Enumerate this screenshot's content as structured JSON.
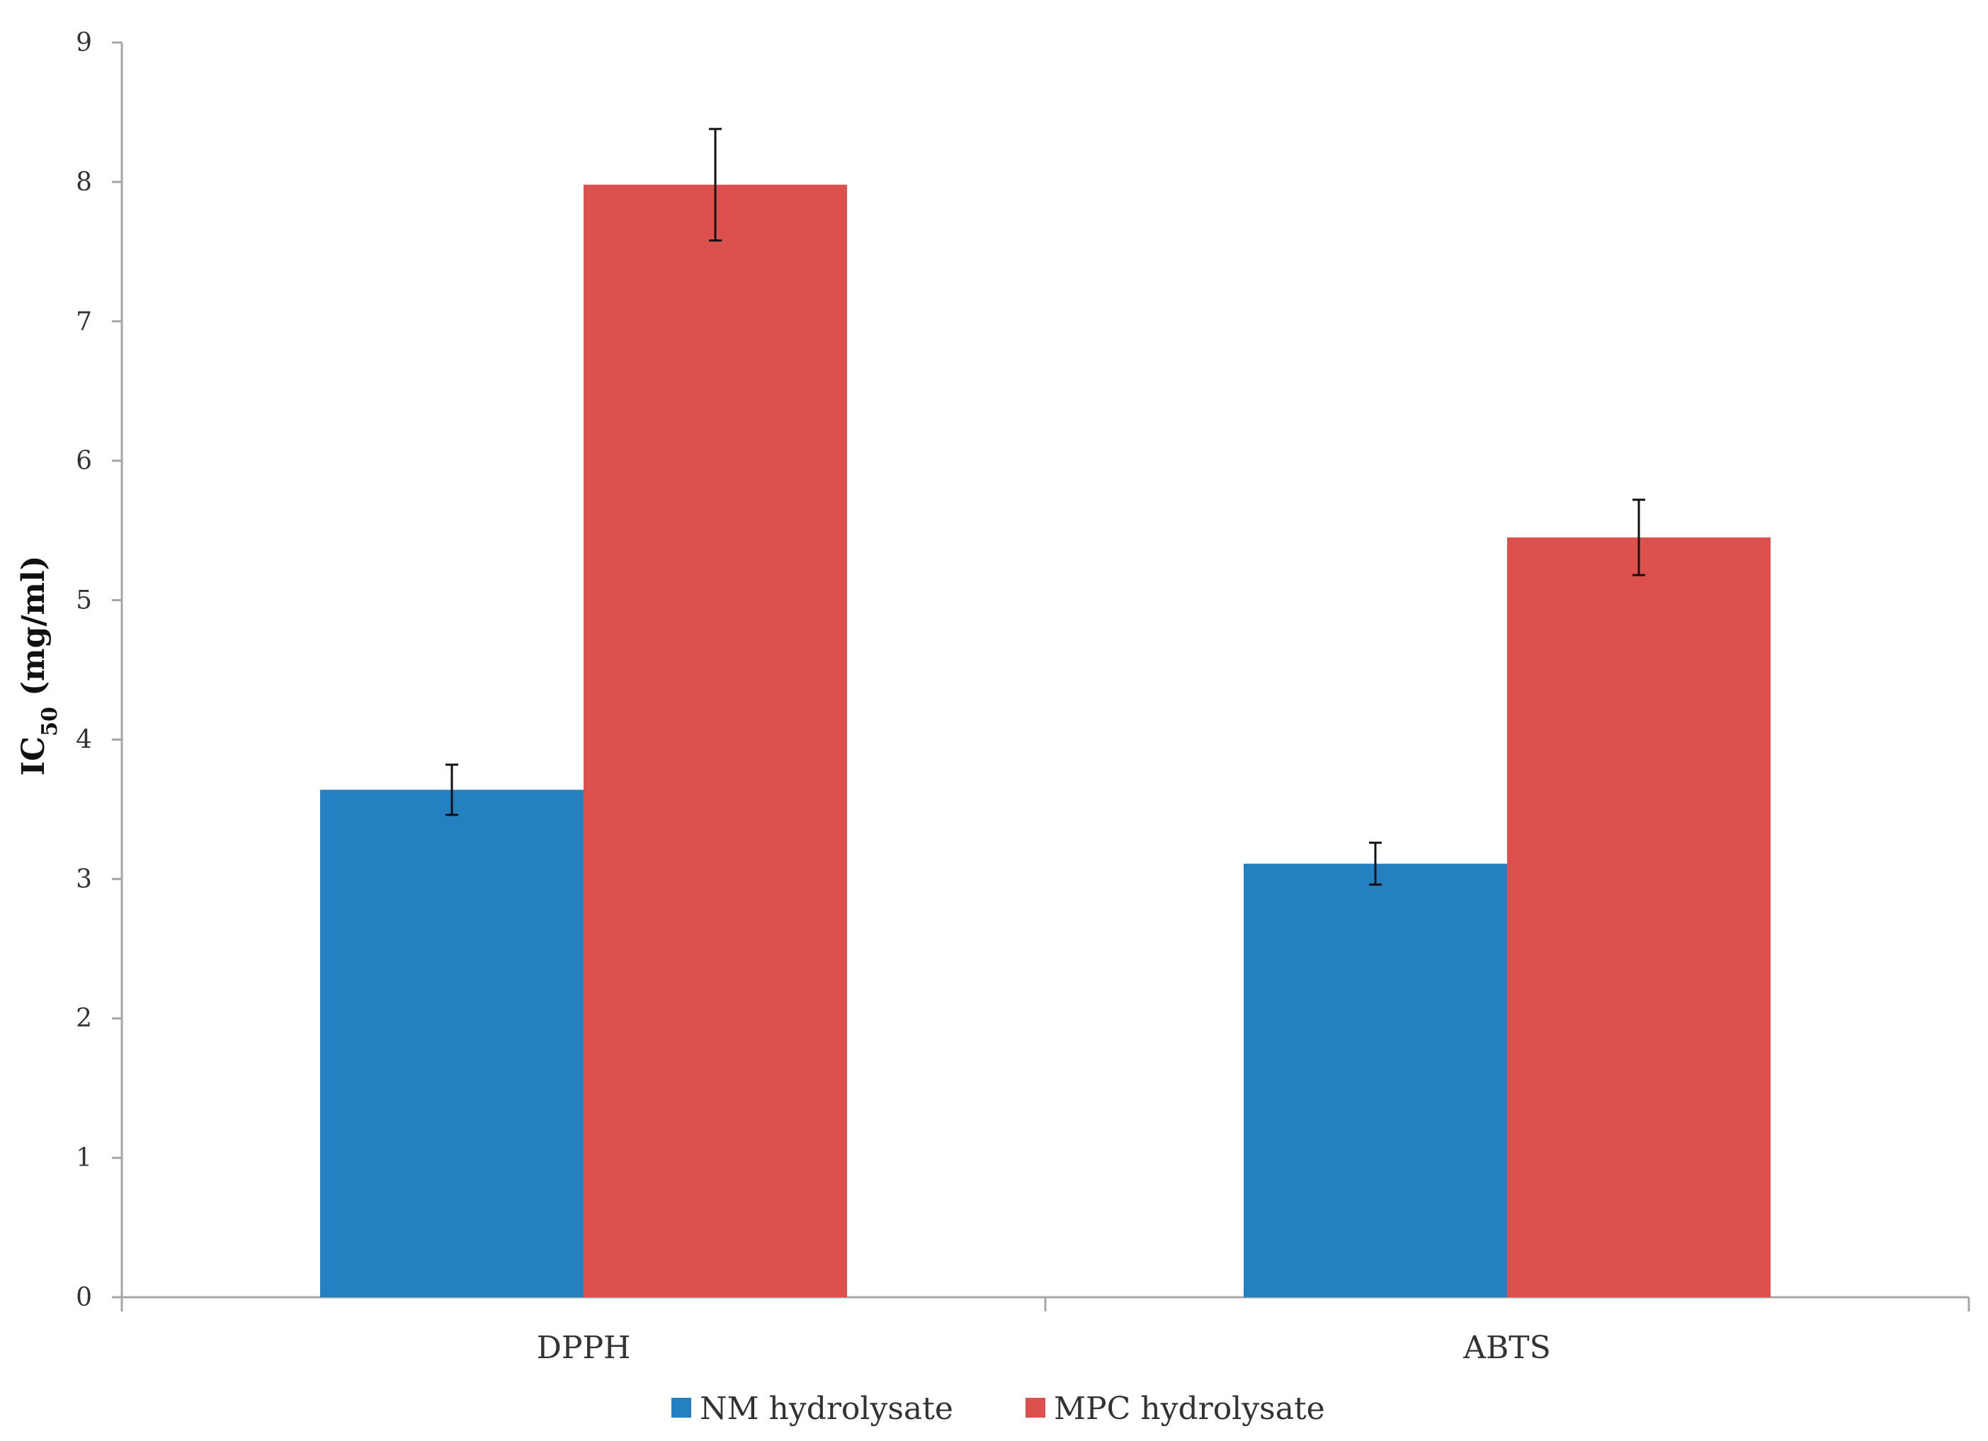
{
  "chart_data": {
    "type": "bar",
    "categories": [
      "DPPH",
      "ABTS"
    ],
    "series": [
      {
        "name": "NM hydrolysate",
        "color": "#2580C2",
        "values": [
          3.64,
          3.11
        ],
        "errors": [
          0.18,
          0.15
        ]
      },
      {
        "name": "MPC hydrolysate",
        "color": "#DC514E",
        "values": [
          7.98,
          5.45
        ],
        "errors": [
          0.4,
          0.27
        ]
      }
    ],
    "ylabel_main": "IC",
    "ylabel_sub": "50",
    "ylabel_rest": " (mg/ml)",
    "ylim": [
      0,
      9
    ],
    "yticks": [
      "0",
      "1",
      "2",
      "3",
      "4",
      "5",
      "6",
      "7",
      "8",
      "9"
    ],
    "grid": false,
    "legend_position": "bottom-center"
  }
}
